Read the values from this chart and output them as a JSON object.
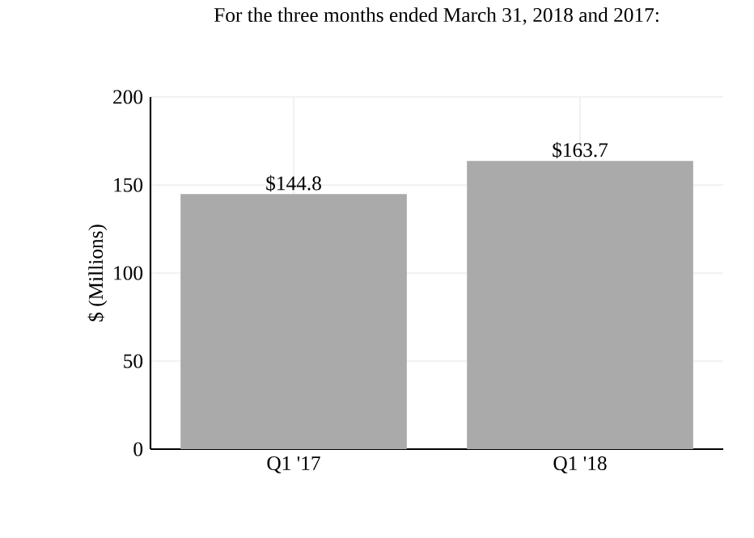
{
  "chart_data": {
    "type": "bar",
    "title": "For the three months ended March 31, 2018 and 2017:",
    "ylabel": "$ (Millions)",
    "categories": [
      "Q1 '17",
      "Q1 '18"
    ],
    "values": [
      144.8,
      163.7
    ],
    "color": "#aaaaaa",
    "value_labels": [
      "$144.8",
      "$163.7"
    ],
    "ylim": [
      0,
      200
    ],
    "yticks": [
      0,
      50,
      100,
      150,
      200
    ],
    "grid": true
  }
}
